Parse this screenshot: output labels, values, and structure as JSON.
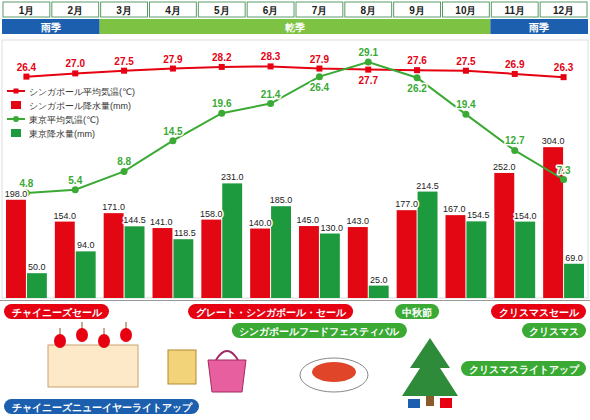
{
  "chart_data": {
    "type": "bar",
    "categories": [
      "1月",
      "2月",
      "3月",
      "4月",
      "5月",
      "6月",
      "7月",
      "8月",
      "9月",
      "10月",
      "11月",
      "12月"
    ],
    "seasons": [
      {
        "label": "雨季",
        "span": [
          "1月",
          "2月"
        ],
        "color": "#1c5fae"
      },
      {
        "label": "乾季",
        "span": [
          "3月",
          "10月"
        ],
        "color": "#7dc242"
      },
      {
        "label": "雨季",
        "span": [
          "11月",
          "12月"
        ],
        "color": "#1c5fae"
      }
    ],
    "series": [
      {
        "name": "シンガポール平均気温(℃)",
        "type": "line",
        "axis": "y2",
        "color": "#e60012",
        "marker": "square",
        "values": [
          26.4,
          27.0,
          27.5,
          27.9,
          28.2,
          28.3,
          27.9,
          27.7,
          27.6,
          27.5,
          26.9,
          26.3
        ],
        "value_labels": [
          "26.4",
          "27.0",
          "27.5",
          "27.9",
          "28.2",
          "28.3",
          "27.9",
          "27.7",
          "27.6",
          "27.5",
          "26.9",
          "26.3"
        ]
      },
      {
        "name": "シンガポール降水量(mm)",
        "type": "bar",
        "color": "#e30613",
        "values": [
          198,
          154,
          171,
          141,
          158,
          140,
          145,
          143,
          177,
          167,
          252,
          304
        ],
        "value_labels": [
          "198.0",
          "154.0",
          "171.0",
          "141.0",
          "158.0",
          "140.0",
          "145.0",
          "143.0",
          "177.0",
          "167.0",
          "252.0",
          "304.0"
        ]
      },
      {
        "name": "東京平均気温(℃)",
        "type": "line",
        "axis": "y2",
        "color": "#3aaa35",
        "marker": "circle",
        "values": [
          4.8,
          5.4,
          8.8,
          14.5,
          19.6,
          21.4,
          26.4,
          29.1,
          26.2,
          19.4,
          12.7,
          7.3
        ],
        "value_labels": [
          "4.8",
          "5.4",
          "8.8",
          "14.5",
          "19.6",
          "21.4",
          "26.4",
          "29.1",
          "26.2",
          "19.4",
          "12.7",
          "7.3"
        ]
      },
      {
        "name": "東京降水量(mm)",
        "type": "bar",
        "color": "#1e9a3e",
        "values": [
          50,
          94,
          144.5,
          118.5,
          231,
          185,
          130,
          25,
          214.5,
          154.5,
          154,
          69
        ],
        "value_labels": [
          "50.0",
          "94.0",
          "144.5",
          "118.5",
          "231.0",
          "185.0",
          "130.0",
          "25.0",
          "214.5",
          "154.5",
          "154.0",
          "69.0"
        ]
      }
    ],
    "ylim": [
      0,
      520
    ],
    "y2lim": [
      -14.7,
      33.2
    ],
    "tick_labels": false,
    "data_labels": true,
    "legend": "upper left",
    "annotations": [
      {
        "text": "チャイニーズセール",
        "span": [
          "1月",
          "2月"
        ],
        "color": "#e60012"
      },
      {
        "text": "グレート・シンガポール・セール",
        "span": [
          "5月",
          "7月"
        ],
        "color": "#e60012"
      },
      {
        "text": "中秋節",
        "span": [
          "9月",
          "9月"
        ],
        "color": "#3aaa35"
      },
      {
        "text": "クリスマスセール",
        "span": [
          "11月",
          "12月"
        ],
        "color": "#e60012"
      },
      {
        "text": "シンガポールフードフェスティバル",
        "span": [
          "7月",
          "7月"
        ],
        "color": "#3aaa35"
      },
      {
        "text": "クリスマス",
        "span": [
          "12月",
          "12月"
        ],
        "color": "#3aaa35"
      },
      {
        "text": "クリスマスライトアップ",
        "span": [
          "11月",
          "12月"
        ],
        "color": "#3aaa35"
      },
      {
        "text": "チャイニーズニューイヤーライトアップ",
        "span": [
          "1月",
          "2月"
        ],
        "color": "#1c5fae"
      }
    ]
  }
}
